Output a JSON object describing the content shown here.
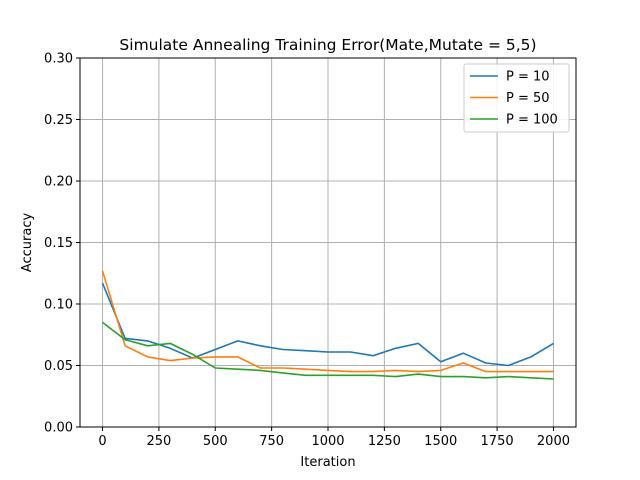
{
  "chart_data": {
    "type": "line",
    "title": "Simulate Annealing Training Error(Mate,Mutate = 5,5)",
    "xlabel": "Iteration",
    "ylabel": "Accuracy",
    "xlim": [
      -100,
      2100
    ],
    "ylim": [
      0,
      0.3
    ],
    "xticks": [
      0,
      250,
      500,
      750,
      1000,
      1250,
      1500,
      1750,
      2000
    ],
    "yticks": [
      0.0,
      0.05,
      0.1,
      0.15,
      0.2,
      0.25,
      0.3
    ],
    "xtick_labels": [
      "0",
      "250",
      "500",
      "750",
      "1000",
      "1250",
      "1500",
      "1750",
      "2000"
    ],
    "ytick_labels": [
      "0.00",
      "0.05",
      "0.10",
      "0.15",
      "0.20",
      "0.25",
      "0.30"
    ],
    "grid": true,
    "legend_position": "upper right",
    "x": [
      0,
      100,
      200,
      300,
      400,
      500,
      600,
      700,
      800,
      900,
      1000,
      1100,
      1200,
      1300,
      1400,
      1500,
      1600,
      1700,
      1800,
      1900,
      2000
    ],
    "series": [
      {
        "name": "P = 10",
        "color": "#1f77b4",
        "values": [
          0.117,
          0.072,
          0.07,
          0.064,
          0.056,
          0.063,
          0.07,
          0.066,
          0.063,
          0.062,
          0.061,
          0.061,
          0.058,
          0.064,
          0.068,
          0.053,
          0.06,
          0.052,
          0.05,
          0.057,
          0.068
        ]
      },
      {
        "name": "P = 50",
        "color": "#ff7f0e",
        "values": [
          0.127,
          0.066,
          0.057,
          0.054,
          0.056,
          0.057,
          0.057,
          0.048,
          0.048,
          0.047,
          0.046,
          0.045,
          0.045,
          0.046,
          0.045,
          0.046,
          0.052,
          0.045,
          0.045,
          0.045,
          0.045
        ]
      },
      {
        "name": "P = 100",
        "color": "#2ca02c",
        "values": [
          0.085,
          0.071,
          0.066,
          0.068,
          0.059,
          0.048,
          0.047,
          0.046,
          0.044,
          0.042,
          0.042,
          0.042,
          0.042,
          0.041,
          0.043,
          0.041,
          0.041,
          0.04,
          0.041,
          0.04,
          0.039
        ]
      }
    ]
  }
}
